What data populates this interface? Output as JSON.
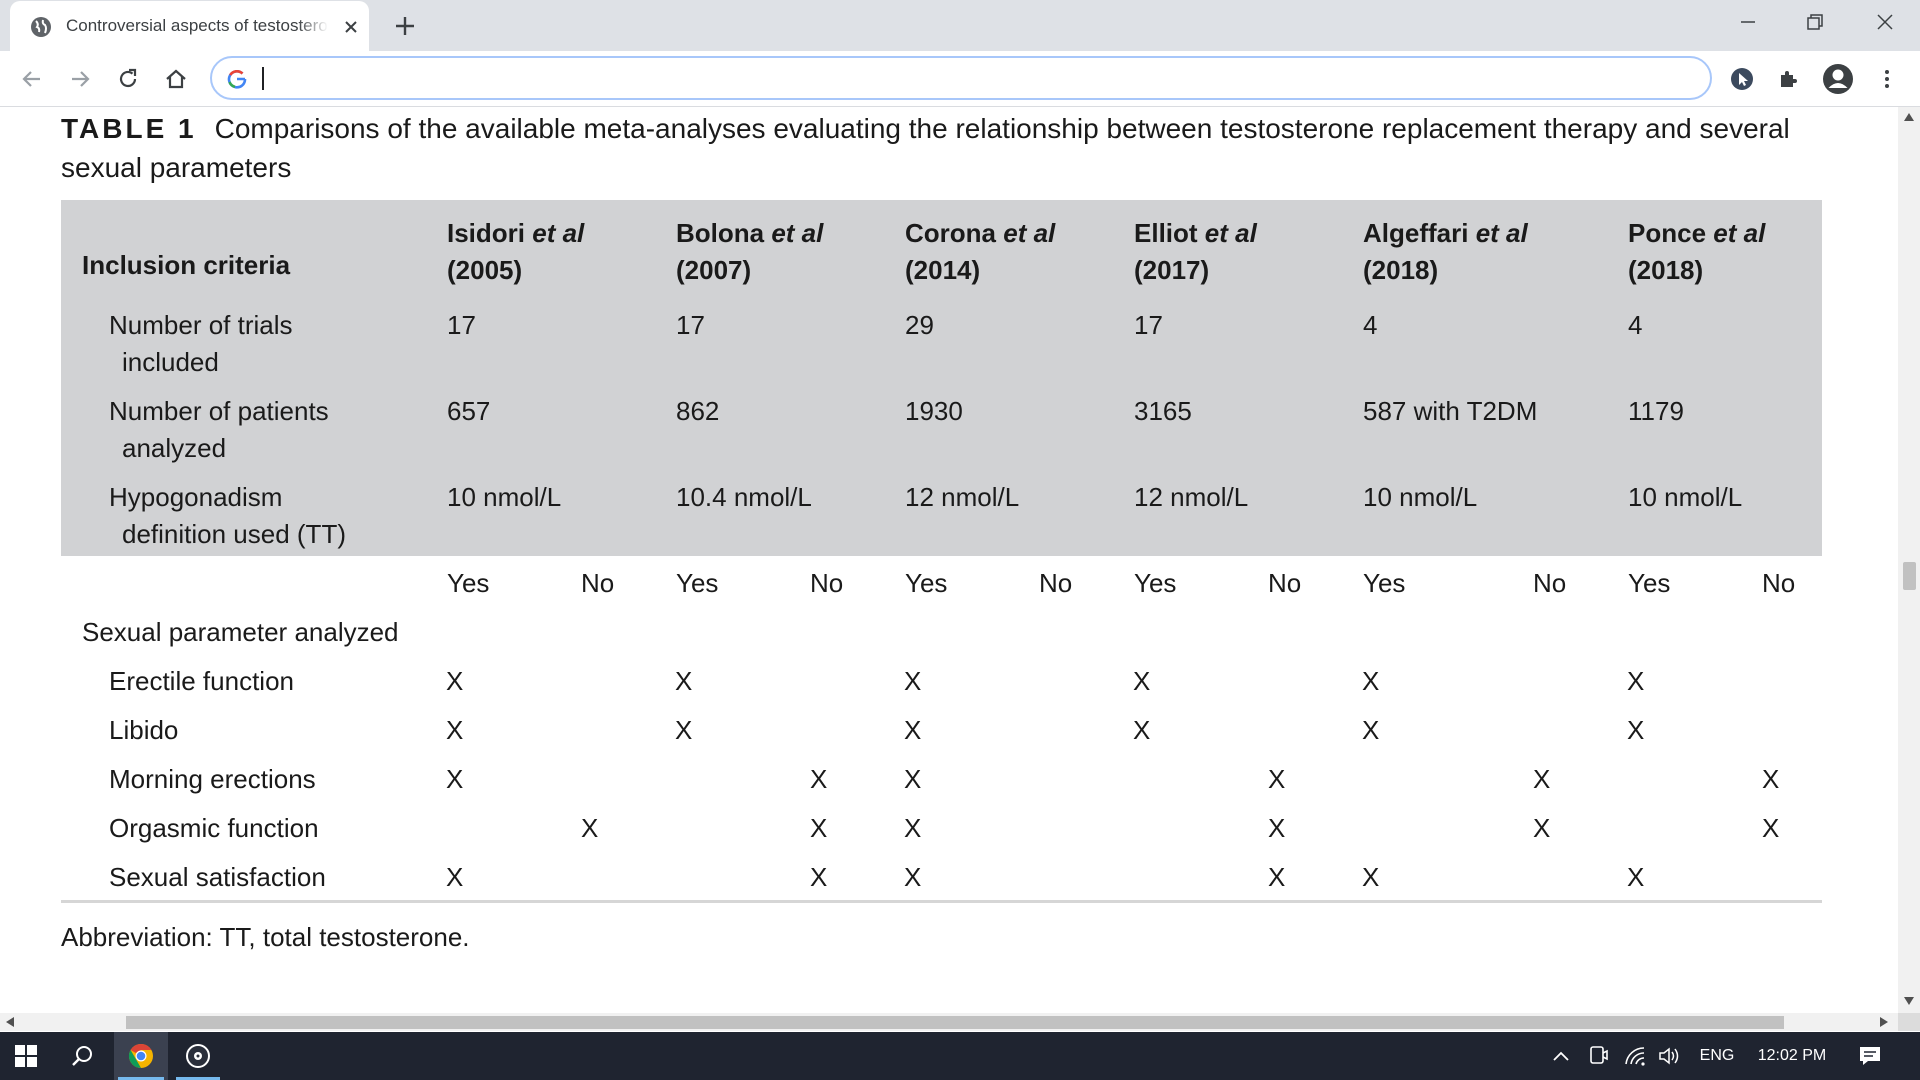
{
  "browser": {
    "tab_title": "Controversial aspects of testosterone",
    "address_value": "",
    "colors": {
      "tabstrip": "#dee1e6",
      "omnibox_border": "#a8c7fa"
    }
  },
  "table": {
    "label": "TABLE 1",
    "title": "Comparisons of the available meta-analyses evaluating the relationship between testosterone replacement therapy and several sexual parameters",
    "inclusion_header": "Inclusion criteria",
    "studies": [
      {
        "author": "Isidori",
        "etal": "et al",
        "year": "(2005)"
      },
      {
        "author": "Bolona",
        "etal": "et al",
        "year": "(2007)"
      },
      {
        "author": "Corona",
        "etal": "et al",
        "year": "(2014)"
      },
      {
        "author": "Elliot",
        "etal": "et al",
        "year": "(2017)"
      },
      {
        "author": "Algeffari",
        "etal": "et al",
        "year": "(2018)"
      },
      {
        "author": "Ponce",
        "etal": "et al",
        "year": "(2018)"
      }
    ],
    "criteria_rows": [
      {
        "label_line1": "Number of trials",
        "label_line2": "included",
        "values": [
          "17",
          "17",
          "29",
          "17",
          "4",
          "4"
        ]
      },
      {
        "label_line1": "Number of patients",
        "label_line2": "analyzed",
        "values": [
          "657",
          "862",
          "1930",
          "3165",
          "587 with T2DM",
          "1179"
        ]
      },
      {
        "label_line1": "Hypogonadism",
        "label_line2": "definition used (TT)",
        "values": [
          "10 nmol/L",
          "10.4 nmol/L",
          "12 nmol/L",
          "12 nmol/L",
          "10 nmol/L",
          "10 nmol/L"
        ]
      }
    ],
    "yes_label": "Yes",
    "no_label": "No",
    "params_header": "Sexual parameter analyzed",
    "parameters": [
      {
        "label": "Erectile function",
        "marks": [
          "X",
          "",
          "X",
          "",
          "X",
          "",
          "X",
          "",
          "X",
          "",
          "X",
          ""
        ]
      },
      {
        "label": "Libido",
        "marks": [
          "X",
          "",
          "X",
          "",
          "X",
          "",
          "X",
          "",
          "X",
          "",
          "X",
          ""
        ]
      },
      {
        "label": "Morning erections",
        "marks": [
          "X",
          "",
          "",
          "X",
          "X",
          "",
          "",
          "X",
          "",
          "X",
          "",
          "X"
        ]
      },
      {
        "label": "Orgasmic function",
        "marks": [
          "",
          "X",
          "",
          "X",
          "X",
          "",
          "",
          "X",
          "",
          "X",
          "",
          "X"
        ]
      },
      {
        "label": "Sexual satisfaction",
        "marks": [
          "X",
          "",
          "",
          "X",
          "X",
          "",
          "",
          "X",
          "X",
          "",
          "X",
          ""
        ]
      }
    ],
    "footnote": "Abbreviation: TT, total testosterone."
  },
  "taskbar": {
    "language": "ENG",
    "time": "12:02 PM"
  }
}
